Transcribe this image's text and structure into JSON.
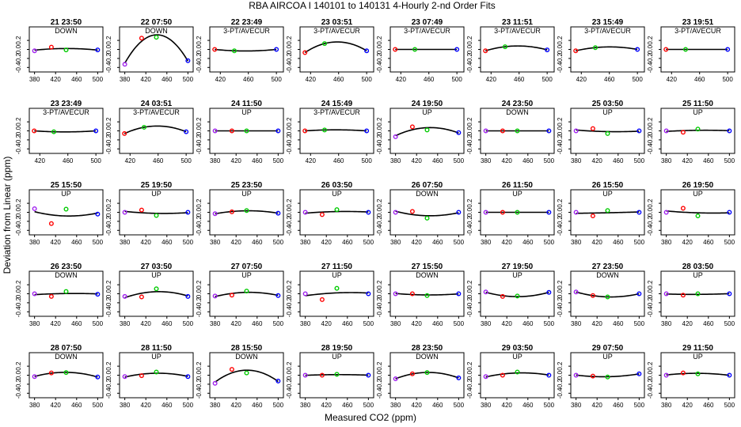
{
  "title": "RBA   AIRCOA I   140101 to 140131   4-Hourly 2-nd Order Fits",
  "xlabel": "Measured CO2 (ppm)",
  "ylabel": "Deviation from Linear (ppm)",
  "colors": {
    "std1": "#a020f0",
    "std2": "#ff0000",
    "std3": "#00cc00",
    "std4": "#0000ff",
    "curve": "#000000"
  },
  "chart_data": {
    "type": "scatter",
    "axes": {
      "y_ticks": [
        "0.2",
        "0.0",
        "-0.2",
        "-0.4"
      ],
      "ylim": [
        -0.5,
        0.5
      ],
      "x_ticks_wide": [
        "380",
        "420",
        "460",
        "500"
      ],
      "x_ticks_narrow": [
        "420",
        "460",
        "500"
      ],
      "xlim_wide": [
        370,
        510
      ],
      "xlim_narrow": [
        405,
        510
      ]
    },
    "panels": [
      {
        "label": "21 23:50",
        "mode": "DOWN",
        "x": [
          380,
          412,
          440,
          500
        ],
        "y": [
          -0.03,
          0.05,
          -0.01,
          -0.01
        ]
      },
      {
        "label": "22 07:50",
        "mode": "DOWN",
        "x": [
          380,
          412,
          440,
          500
        ],
        "y": [
          -0.33,
          0.25,
          0.27,
          -0.25
        ]
      },
      {
        "label": "22 23:49",
        "mode": "3-PT/AVECUR",
        "x": [
          412,
          440,
          500
        ],
        "y": [
          0.0,
          -0.03,
          0.0
        ]
      },
      {
        "label": "23 03:51",
        "mode": "3-PT/AVECUR",
        "x": [
          412,
          440,
          500
        ],
        "y": [
          -0.07,
          0.13,
          -0.03
        ]
      },
      {
        "label": "23 07:49",
        "mode": "3-PT/AVECUR",
        "x": [
          412,
          440,
          500
        ],
        "y": [
          0.0,
          0.0,
          0.0
        ]
      },
      {
        "label": "23 11:51",
        "mode": "3-PT/AVECUR",
        "x": [
          412,
          440,
          500
        ],
        "y": [
          -0.03,
          0.06,
          -0.01
        ]
      },
      {
        "label": "23 15:49",
        "mode": "3-PT/AVECUR",
        "x": [
          412,
          440,
          500
        ],
        "y": [
          -0.03,
          0.04,
          0.0
        ]
      },
      {
        "label": "23 19:51",
        "mode": "3-PT/AVECUR",
        "x": [
          412,
          440,
          500
        ],
        "y": [
          0.0,
          0.0,
          0.0
        ]
      },
      {
        "label": "23 23:49",
        "mode": "3-PT/AVECUR",
        "x": [
          412,
          440,
          500
        ],
        "y": [
          0.0,
          -0.02,
          0.0
        ]
      },
      {
        "label": "24 03:51",
        "mode": "3-PT/AVECUR",
        "x": [
          412,
          440,
          500
        ],
        "y": [
          -0.06,
          0.08,
          -0.02
        ]
      },
      {
        "label": "24 11:50",
        "mode": "UP",
        "x": [
          380,
          412,
          440,
          500
        ],
        "y": [
          0.0,
          0.0,
          0.0,
          0.0
        ]
      },
      {
        "label": "24 15:49",
        "mode": "3-PT/AVECUR",
        "x": [
          412,
          440,
          500
        ],
        "y": [
          0.0,
          0.02,
          0.0
        ]
      },
      {
        "label": "24 19:50",
        "mode": "UP",
        "x": [
          380,
          412,
          440,
          500
        ],
        "y": [
          -0.13,
          0.09,
          0.02,
          -0.04
        ]
      },
      {
        "label": "24 23:50",
        "mode": "DOWN",
        "x": [
          380,
          412,
          440,
          500
        ],
        "y": [
          0.0,
          0.0,
          0.0,
          0.0
        ]
      },
      {
        "label": "25 03:50",
        "mode": "UP",
        "x": [
          380,
          412,
          440,
          500
        ],
        "y": [
          0.0,
          0.05,
          -0.06,
          0.0
        ]
      },
      {
        "label": "25 11:50",
        "mode": "UP",
        "x": [
          380,
          412,
          440,
          500
        ],
        "y": [
          0.0,
          -0.03,
          0.04,
          0.0
        ]
      },
      {
        "label": "25 15:50",
        "mode": "UP",
        "x": [
          380,
          412,
          440,
          500
        ],
        "y": [
          0.08,
          -0.25,
          0.07,
          -0.04
        ]
      },
      {
        "label": "25 19:50",
        "mode": "UP",
        "x": [
          380,
          412,
          440,
          500
        ],
        "y": [
          0.0,
          0.05,
          -0.07,
          0.0
        ]
      },
      {
        "label": "25 23:50",
        "mode": "UP",
        "x": [
          380,
          412,
          440,
          500
        ],
        "y": [
          -0.03,
          0.01,
          0.04,
          -0.02
        ]
      },
      {
        "label": "26 03:50",
        "mode": "UP",
        "x": [
          380,
          412,
          440,
          500
        ],
        "y": [
          0.0,
          -0.05,
          0.06,
          0.0
        ]
      },
      {
        "label": "26 07:50",
        "mode": "DOWN",
        "x": [
          380,
          412,
          440,
          500
        ],
        "y": [
          0.0,
          0.02,
          -0.13,
          0.0
        ]
      },
      {
        "label": "26 11:50",
        "mode": "UP",
        "x": [
          380,
          412,
          440,
          500
        ],
        "y": [
          0.0,
          0.0,
          0.0,
          0.0
        ]
      },
      {
        "label": "26 15:50",
        "mode": "UP",
        "x": [
          380,
          412,
          440,
          500
        ],
        "y": [
          0.0,
          -0.08,
          0.04,
          0.0
        ]
      },
      {
        "label": "26 19:50",
        "mode": "UP",
        "x": [
          380,
          412,
          440,
          500
        ],
        "y": [
          0.0,
          0.09,
          -0.08,
          0.0
        ]
      },
      {
        "label": "26 23:50",
        "mode": "DOWN",
        "x": [
          380,
          412,
          440,
          500
        ],
        "y": [
          0.0,
          -0.06,
          0.05,
          -0.01
        ]
      },
      {
        "label": "27 03:50",
        "mode": "UP",
        "x": [
          380,
          412,
          440,
          500
        ],
        "y": [
          -0.06,
          -0.07,
          0.11,
          -0.06
        ]
      },
      {
        "label": "27 07:50",
        "mode": "UP",
        "x": [
          380,
          412,
          440,
          500
        ],
        "y": [
          -0.05,
          -0.03,
          0.06,
          -0.04
        ]
      },
      {
        "label": "27 11:50",
        "mode": "UP",
        "x": [
          380,
          412,
          440,
          500
        ],
        "y": [
          0.0,
          -0.13,
          0.12,
          0.0
        ]
      },
      {
        "label": "27 15:50",
        "mode": "DOWN",
        "x": [
          380,
          412,
          440,
          500
        ],
        "y": [
          0.0,
          0.0,
          -0.04,
          0.0
        ]
      },
      {
        "label": "27 19:50",
        "mode": "UP",
        "x": [
          380,
          412,
          440,
          500
        ],
        "y": [
          0.04,
          -0.06,
          -0.05,
          0.03
        ]
      },
      {
        "label": "27 23:50",
        "mode": "DOWN",
        "x": [
          380,
          412,
          440,
          500
        ],
        "y": [
          0.04,
          -0.04,
          -0.07,
          0.0
        ]
      },
      {
        "label": "28 03:50",
        "mode": "UP",
        "x": [
          380,
          412,
          440,
          500
        ],
        "y": [
          0.0,
          -0.03,
          0.0,
          0.0
        ]
      },
      {
        "label": "28 07:50",
        "mode": "DOWN",
        "x": [
          380,
          412,
          440,
          500
        ],
        "y": [
          -0.03,
          0.05,
          0.06,
          -0.04
        ]
      },
      {
        "label": "28 11:50",
        "mode": "UP",
        "x": [
          380,
          412,
          440,
          500
        ],
        "y": [
          -0.03,
          -0.01,
          0.07,
          -0.03
        ]
      },
      {
        "label": "28 15:50",
        "mode": "DOWN",
        "x": [
          380,
          412,
          440,
          500
        ],
        "y": [
          -0.18,
          0.13,
          0.05,
          -0.13
        ]
      },
      {
        "label": "28 19:50",
        "mode": "UP",
        "x": [
          380,
          412,
          440,
          500
        ],
        "y": [
          0.0,
          0.0,
          0.02,
          0.0
        ]
      },
      {
        "label": "28 23:50",
        "mode": "DOWN",
        "x": [
          380,
          412,
          440,
          500
        ],
        "y": [
          -0.08,
          0.03,
          0.06,
          -0.06
        ]
      },
      {
        "label": "29 03:50",
        "mode": "UP",
        "x": [
          380,
          412,
          440,
          500
        ],
        "y": [
          -0.03,
          0.0,
          0.07,
          0.0
        ]
      },
      {
        "label": "29 07:50",
        "mode": "UP",
        "x": [
          380,
          412,
          440,
          500
        ],
        "y": [
          0.0,
          -0.02,
          -0.04,
          0.03
        ]
      },
      {
        "label": "29 11:50",
        "mode": "UP",
        "x": [
          380,
          412,
          440,
          500
        ],
        "y": [
          0.0,
          0.05,
          0.03,
          0.0
        ]
      }
    ]
  }
}
